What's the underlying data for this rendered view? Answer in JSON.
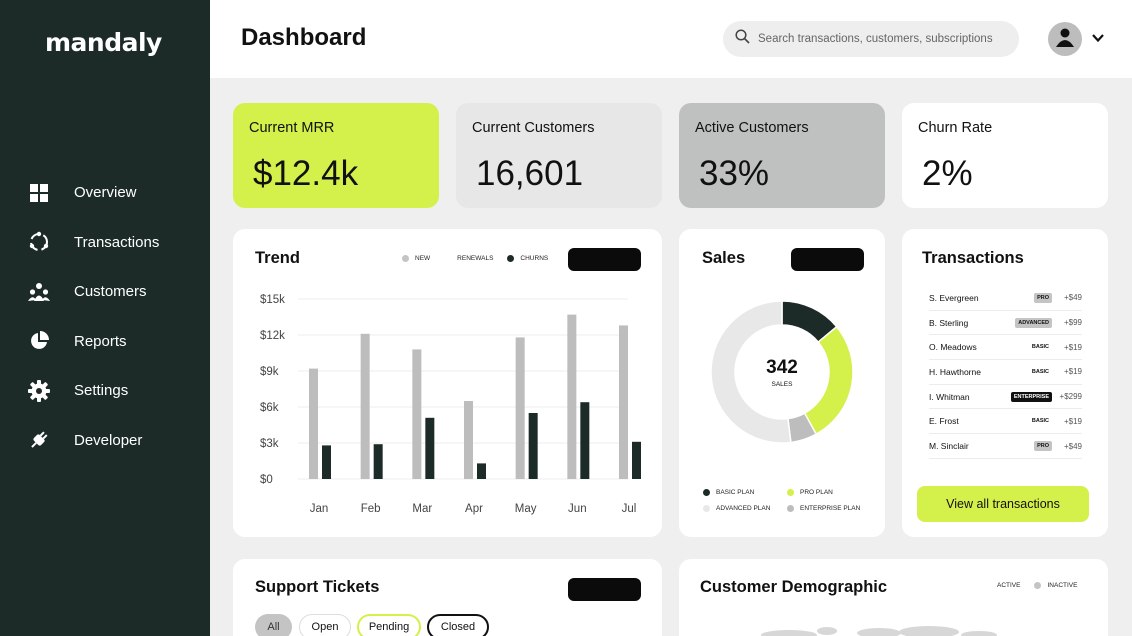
{
  "sidebar": {
    "logo": "mandaly",
    "items": [
      {
        "label": "Overview",
        "icon": "grid-icon"
      },
      {
        "label": "Transactions",
        "icon": "cycle-icon"
      },
      {
        "label": "Customers",
        "icon": "users-icon"
      },
      {
        "label": "Reports",
        "icon": "pie-icon"
      },
      {
        "label": "Settings",
        "icon": "gear-icon"
      },
      {
        "label": "Developer",
        "icon": "plug-icon"
      }
    ]
  },
  "header": {
    "title": "Dashboard",
    "search_placeholder": "Search transactions, customers, subscriptions"
  },
  "stats": [
    {
      "label": "Current MRR",
      "value": "$12.4k",
      "bg": "#d4f04a"
    },
    {
      "label": "Current Customers",
      "value": "16,601",
      "bg": "#e7e7e7"
    },
    {
      "label": "Active Customers",
      "value": "33%",
      "bg": "#bfc1c1"
    },
    {
      "label": "Churn Rate",
      "value": "2%",
      "bg": "#ffffff"
    }
  ],
  "trend": {
    "title": "Trend",
    "legend": [
      {
        "label": "NEW",
        "color": "#c4c4c4"
      },
      {
        "label": "RENEWALS",
        "color": "#ffffff"
      },
      {
        "label": "CHURNS",
        "color": "#1c2b27"
      }
    ]
  },
  "chart_data": {
    "type": "bar",
    "categories": [
      "Jan",
      "Feb",
      "Mar",
      "Apr",
      "May",
      "Jun",
      "Jul"
    ],
    "series": [
      {
        "name": "NEW",
        "values": [
          9200,
          12100,
          10800,
          6500,
          11800,
          13700,
          12800
        ],
        "color": "#bdbdbd"
      },
      {
        "name": "CHURNS",
        "values": [
          2800,
          2900,
          5100,
          1300,
          5500,
          6400,
          3100
        ],
        "color": "#1c2b27"
      }
    ],
    "y_ticks": [
      "$0",
      "$3k",
      "$6k",
      "$9k",
      "$12k",
      "$15k"
    ],
    "ylim": [
      0,
      15000
    ]
  },
  "sales": {
    "title": "Sales",
    "total": "342",
    "total_label": "SALES",
    "slices": [
      {
        "name": "BASIC PLAN",
        "value": 14,
        "color": "#1c2b27"
      },
      {
        "name": "PRO PLAN",
        "value": 28,
        "color": "#d4f04a"
      },
      {
        "name": "ENTERPRISE PLAN",
        "value": 6,
        "color": "#bdbdbd"
      },
      {
        "name": "ADVANCED PLAN",
        "value": 52,
        "color": "#e8e8e8"
      }
    ],
    "legend": [
      {
        "label": "BASIC PLAN",
        "color": "#1c2b27"
      },
      {
        "label": "PRO PLAN",
        "color": "#d4f04a"
      },
      {
        "label": "ADVANCED PLAN",
        "color": "#e8e8e8"
      },
      {
        "label": "ENTERPRISE PLAN",
        "color": "#bdbdbd"
      }
    ]
  },
  "transactions": {
    "title": "Transactions",
    "rows": [
      {
        "name": "S. Evergreen",
        "plan": "PRO",
        "amount": "+$49",
        "style": "pro"
      },
      {
        "name": "B. Sterling",
        "plan": "ADVANCED",
        "amount": "+$99",
        "style": "advanced"
      },
      {
        "name": "O. Meadows",
        "plan": "BASIC",
        "amount": "+$19",
        "style": "basic"
      },
      {
        "name": "H. Hawthorne",
        "plan": "BASIC",
        "amount": "+$19",
        "style": "basic"
      },
      {
        "name": "I. Whitman",
        "plan": "ENTERPRISE",
        "amount": "+$299",
        "style": "enterprise"
      },
      {
        "name": "E. Frost",
        "plan": "BASIC",
        "amount": "+$19",
        "style": "basic"
      },
      {
        "name": "M. Sinclair",
        "plan": "PRO",
        "amount": "+$49",
        "style": "pro"
      }
    ],
    "button": "View all transactions"
  },
  "support": {
    "title": "Support Tickets",
    "filters": [
      "All",
      "Open",
      "Pending",
      "Closed"
    ]
  },
  "demographic": {
    "title": "Customer Demographic",
    "legend": [
      {
        "label": "ACTIVE",
        "color": "#ffffff"
      },
      {
        "label": "INACTIVE",
        "color": "#c4c4c4"
      }
    ]
  }
}
